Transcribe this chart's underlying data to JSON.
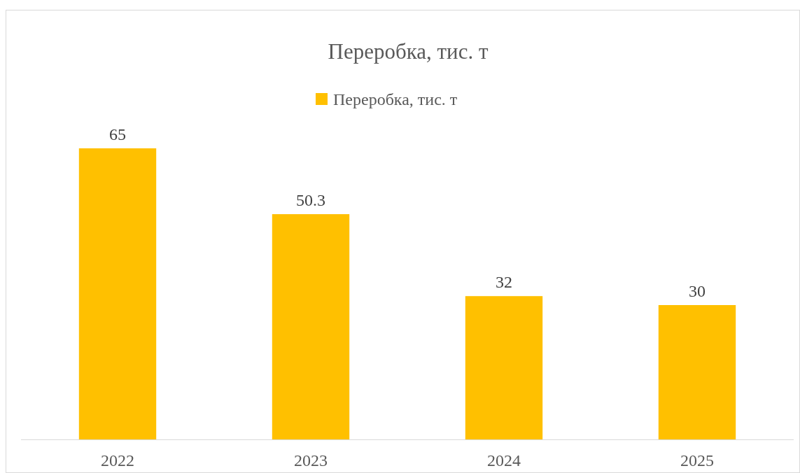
{
  "chart_data": {
    "type": "bar",
    "title": "Переробка, тис. т",
    "categories": [
      "2022",
      "2023",
      "2024",
      "2025"
    ],
    "series": [
      {
        "name": "Переробка, тис. т",
        "color": "#ffc000",
        "values": [
          65,
          50.3,
          32,
          30
        ]
      }
    ],
    "data_labels": true,
    "legend": "top"
  }
}
